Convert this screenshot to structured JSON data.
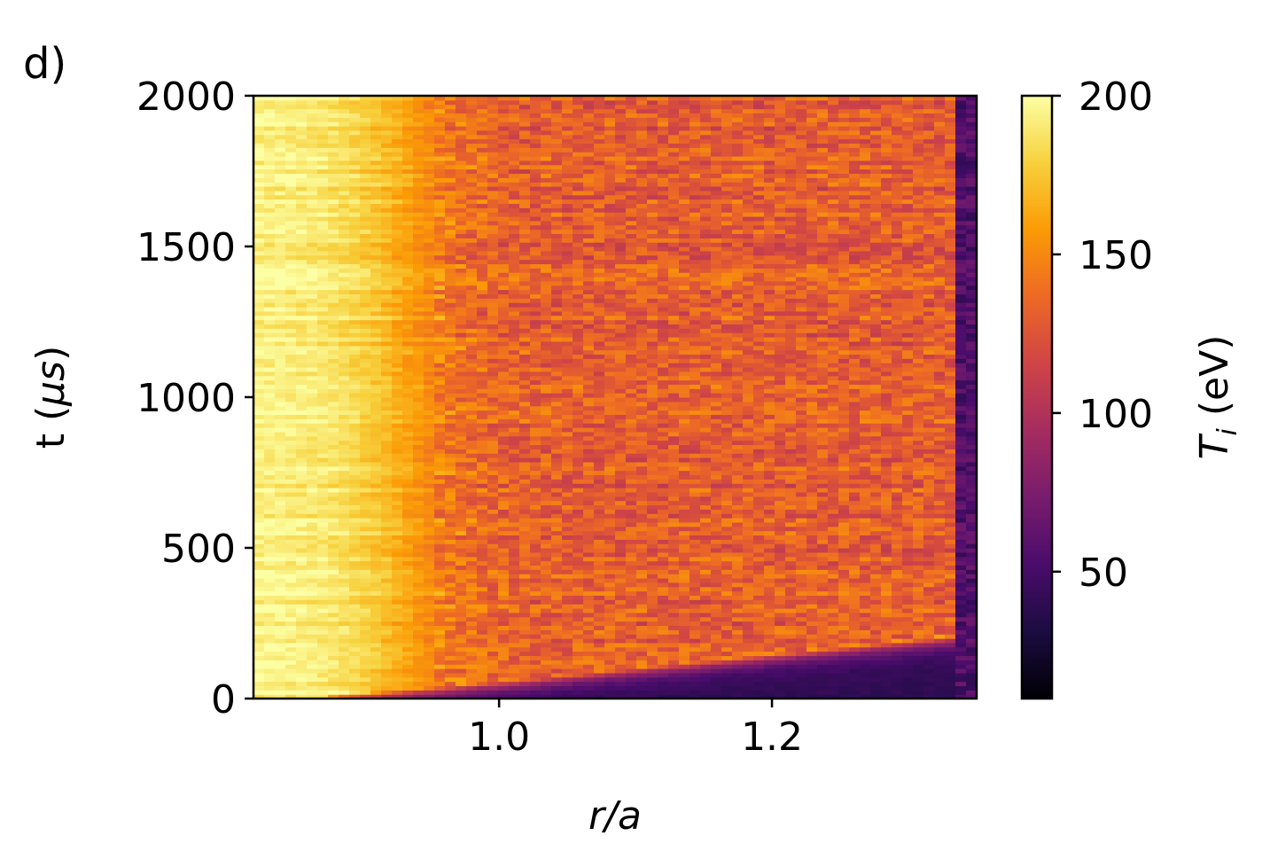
{
  "panel_label": "d)",
  "chart_data": {
    "type": "heatmap",
    "title": "",
    "xlabel": "r/a",
    "ylabel_prefix": "t (",
    "ylabel_symbol": "μs",
    "ylabel_suffix": ")",
    "xlim": [
      0.82,
      1.35
    ],
    "ylim": [
      0,
      2000
    ],
    "x_ticks": [
      {
        "value": 1.0,
        "label": "1.0"
      },
      {
        "value": 1.2,
        "label": "1.2"
      }
    ],
    "y_ticks": [
      {
        "value": 0,
        "label": "0"
      },
      {
        "value": 500,
        "label": "500"
      },
      {
        "value": 1000,
        "label": "1000"
      },
      {
        "value": 1500,
        "label": "1500"
      },
      {
        "value": 2000,
        "label": "2000"
      }
    ],
    "colorbar": {
      "colormap": "inferno",
      "label_symbol": "T",
      "label_subscript": "i",
      "label_unit": " (eV)",
      "range": [
        10,
        200
      ],
      "ticks": [
        {
          "value": 50,
          "label": "50"
        },
        {
          "value": 100,
          "label": "100"
        },
        {
          "value": 150,
          "label": "150"
        },
        {
          "value": 200,
          "label": "200"
        }
      ]
    },
    "grid": false,
    "features": {
      "core_value": 195,
      "edge_value": 130,
      "front_end_time": 220,
      "wall_position": 1.335,
      "wall_value": 40
    },
    "colormap_stops": [
      "#000004",
      "#1b0c41",
      "#4a0c6b",
      "#781c6d",
      "#a52c60",
      "#cf4446",
      "#ed6925",
      "#fb9b06",
      "#f7d13d",
      "#fcffa4"
    ]
  }
}
